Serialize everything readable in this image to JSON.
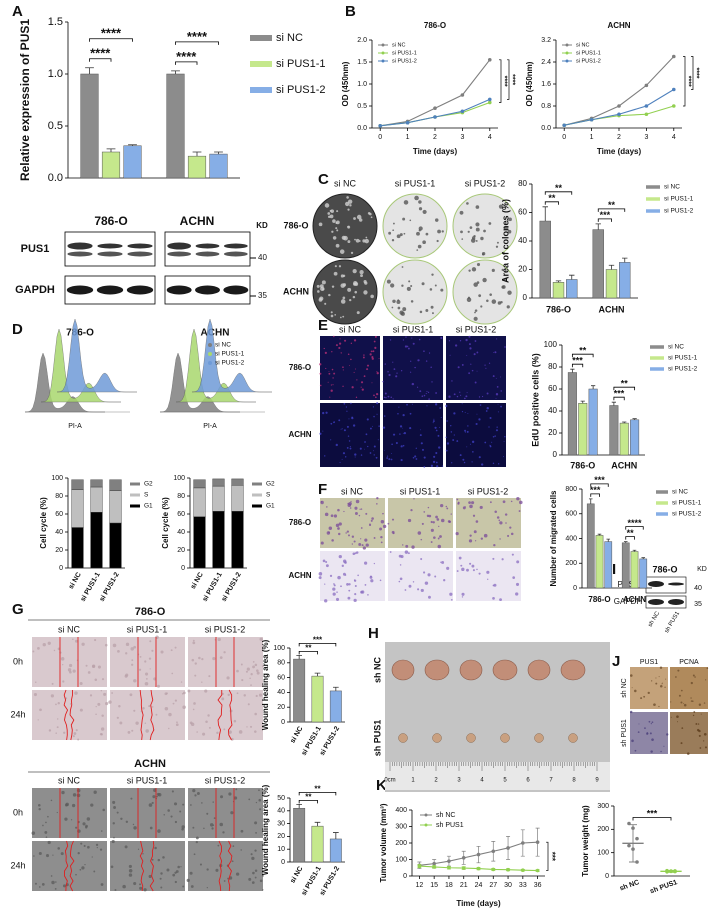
{
  "figure": {
    "letters": [
      "A",
      "B",
      "C",
      "D",
      "E",
      "F",
      "G",
      "H",
      "I",
      "J",
      "K",
      "L"
    ],
    "blot_a": {
      "kd": "KD",
      "rows": [
        "PUS1",
        "GAPDH"
      ],
      "markers": [
        40,
        35
      ]
    },
    "colony_c": {
      "columns": [
        "si NC",
        "si PUS1-1",
        "si PUS1-2"
      ],
      "rows": [
        "786-O",
        "ACHN"
      ]
    },
    "flow_d": {
      "titles": [
        "786-O",
        "ACHN"
      ],
      "xlabel": "PI-A",
      "legend": [
        "si NC",
        "si PUS1-1",
        "si PUS1-2"
      ],
      "colors": [
        "#7f7f7f",
        "#a9d86e",
        "#6f9bd8"
      ]
    },
    "edu_e": {
      "columns": [
        "si NC",
        "si PUS1-1",
        "si PUS1-2"
      ],
      "rows": [
        "786-O",
        "ACHN"
      ]
    },
    "transwell_f": {
      "columns": [
        "si NC",
        "si PUS1-1",
        "si PUS1-2"
      ],
      "rows": [
        "786-O",
        "ACHN"
      ]
    },
    "wound_g": {
      "titles": [
        "786-O",
        "ACHN"
      ],
      "columns": [
        "si NC",
        "si PUS1-1",
        "si PUS1-2"
      ],
      "rows": [
        "0h",
        "24h"
      ]
    },
    "tumor_h": {
      "rows": [
        "sh NC",
        "sh PUS1"
      ],
      "ruler": [
        "0cm",
        "1",
        "2",
        "3",
        "4",
        "5",
        "6",
        "7",
        "8",
        "9"
      ]
    },
    "blot_i": {
      "title": "786-O",
      "kd": "KD",
      "rows": [
        "PUS1",
        "GAPDH"
      ],
      "markers": [
        40,
        35
      ],
      "columns": [
        "sh NC",
        "sh PUS1"
      ]
    },
    "ihc_j": {
      "columns": [
        "PUS1",
        "PCNA"
      ],
      "rows": [
        "sh NC",
        "sh PUS1"
      ]
    }
  },
  "chart_data": [
    {
      "type": "bar",
      "ylabel": "Relative expression of PUS1",
      "categories": [
        "786-O",
        "ACHN"
      ],
      "series": [
        {
          "name": "si NC",
          "color": "#8c8c8c",
          "values": [
            1.0,
            1.0
          ],
          "errors": [
            0.06,
            0.03
          ]
        },
        {
          "name": "si PUS1-1",
          "color": "#c5e88c",
          "values": [
            0.25,
            0.21
          ],
          "errors": [
            0.03,
            0.04
          ]
        },
        {
          "name": "si PUS1-2",
          "color": "#86aee6",
          "values": [
            0.31,
            0.23
          ],
          "errors": [
            0.01,
            0.02
          ]
        }
      ],
      "ylim": [
        0,
        1.5
      ],
      "yticks": [
        {
          "value": 0,
          "label": "0.0"
        },
        0.5,
        {
          "value": 1,
          "label": "1.0"
        },
        1.5
      ],
      "annotations": [
        "****",
        "****",
        "****",
        "****"
      ]
    },
    {
      "type": "line",
      "title": "786-O",
      "xlabel": "Time (days)",
      "ylabel": "OD (450nm)",
      "x": [
        0,
        1,
        2,
        3,
        4
      ],
      "xlim": [
        -0.3,
        4.3
      ],
      "xticks": [
        0,
        1,
        2,
        3,
        4
      ],
      "ylim": [
        0,
        2
      ],
      "yticks": [
        {
          "value": 0,
          "label": "0.0"
        },
        0.5,
        {
          "value": 1,
          "label": "1.0"
        },
        1.5,
        {
          "value": 2,
          "label": "2.0"
        }
      ],
      "series": [
        {
          "name": "si NC",
          "color": "#7f7f7f",
          "values": [
            0.05,
            0.15,
            0.45,
            0.75,
            1.55
          ]
        },
        {
          "name": "si PUS1-1",
          "color": "#92d050",
          "values": [
            0.05,
            0.12,
            0.25,
            0.35,
            0.58
          ]
        },
        {
          "name": "si PUS1-2",
          "color": "#4f81bd",
          "values": [
            0.05,
            0.12,
            0.25,
            0.38,
            0.65
          ]
        }
      ],
      "annotations": [
        "****",
        "****"
      ]
    },
    {
      "type": "line",
      "title": "ACHN",
      "xlabel": "Time (days)",
      "ylabel": "OD (450nm)",
      "x": [
        0,
        1,
        2,
        3,
        4
      ],
      "xlim": [
        -0.3,
        4.3
      ],
      "xticks": [
        0,
        1,
        2,
        3,
        4
      ],
      "ylim": [
        0,
        3.2
      ],
      "yticks": [
        {
          "value": 0,
          "label": "0.0"
        },
        0.8,
        1.6,
        2.4,
        3.2
      ],
      "series": [
        {
          "name": "si NC",
          "color": "#7f7f7f",
          "values": [
            0.1,
            0.35,
            0.8,
            1.55,
            2.6
          ]
        },
        {
          "name": "si PUS1-1",
          "color": "#92d050",
          "values": [
            0.1,
            0.3,
            0.45,
            0.5,
            0.8
          ]
        },
        {
          "name": "si PUS1-2",
          "color": "#4f81bd",
          "values": [
            0.1,
            0.3,
            0.5,
            0.8,
            1.4
          ]
        }
      ],
      "annotations": [
        "****",
        "****"
      ]
    },
    {
      "type": "bar",
      "ylabel": "Area of colones (%)",
      "categories": [
        "786-O",
        "ACHN"
      ],
      "series": [
        {
          "name": "si NC",
          "color": "#8c8c8c",
          "values": [
            54,
            48
          ],
          "errors": [
            10,
            4
          ]
        },
        {
          "name": "si PUS1-1",
          "color": "#c5e88c",
          "values": [
            11,
            20
          ],
          "errors": [
            1,
            3
          ]
        },
        {
          "name": "si PUS1-2",
          "color": "#86aee6",
          "values": [
            13,
            25
          ],
          "errors": [
            3,
            3
          ]
        }
      ],
      "ylim": [
        0,
        80
      ],
      "yticks": [
        0,
        20,
        40,
        60,
        80
      ],
      "annotations": [
        "**",
        "**",
        "***",
        "**"
      ]
    },
    {
      "type": "stacked-bar",
      "ylabel": "Cell cycle (%)",
      "categories": [
        "si NC",
        "si PUS1-1",
        "si PUS1-2"
      ],
      "series": [
        {
          "name": "G1",
          "color": "#000000",
          "values": [
            45,
            62,
            50
          ]
        },
        {
          "name": "S",
          "color": "#bfbfbf",
          "values": [
            42,
            28,
            36
          ]
        },
        {
          "name": "G2",
          "color": "#808080",
          "values": [
            11,
            8,
            12
          ]
        }
      ],
      "ylim": [
        0,
        100
      ],
      "yticks": [
        0,
        20,
        40,
        60,
        80,
        100
      ]
    },
    {
      "type": "stacked-bar",
      "ylabel": "Cell cycle (%)",
      "categories": [
        "si NC",
        "si PUS1-1",
        "si PUS1-2"
      ],
      "series": [
        {
          "name": "G1",
          "color": "#000000",
          "values": [
            57,
            63,
            63
          ]
        },
        {
          "name": "S",
          "color": "#bfbfbf",
          "values": [
            32,
            28,
            29
          ]
        },
        {
          "name": "G2",
          "color": "#808080",
          "values": [
            9,
            8,
            7
          ]
        }
      ],
      "ylim": [
        0,
        100
      ],
      "yticks": [
        0,
        20,
        40,
        60,
        80,
        100
      ]
    },
    {
      "type": "bar",
      "ylabel": "EdU positive cells (%)",
      "categories": [
        "786-O",
        "ACHN"
      ],
      "series": [
        {
          "name": "si NC",
          "color": "#8c8c8c",
          "values": [
            75,
            45
          ],
          "errors": [
            3,
            3
          ]
        },
        {
          "name": "si PUS1-1",
          "color": "#c5e88c",
          "values": [
            47,
            29
          ],
          "errors": [
            2,
            1
          ]
        },
        {
          "name": "si PUS1-2",
          "color": "#86aee6",
          "values": [
            60,
            32
          ],
          "errors": [
            3,
            1
          ]
        }
      ],
      "ylim": [
        0,
        100
      ],
      "yticks": [
        0,
        20,
        40,
        60,
        80,
        100
      ],
      "annotations": [
        "***",
        "**",
        "***",
        "**"
      ]
    },
    {
      "type": "bar",
      "ylabel": "Number of migrated cells",
      "categories": [
        "786-O",
        "ACHN"
      ],
      "series": [
        {
          "name": "si NC",
          "color": "#8c8c8c",
          "values": [
            680,
            365
          ],
          "errors": [
            40,
            10
          ]
        },
        {
          "name": "si PUS1-1",
          "color": "#c5e88c",
          "values": [
            425,
            295
          ],
          "errors": [
            10,
            10
          ]
        },
        {
          "name": "si PUS1-2",
          "color": "#86aee6",
          "values": [
            375,
            235
          ],
          "errors": [
            20,
            10
          ]
        }
      ],
      "ylim": [
        0,
        800
      ],
      "yticks": [
        0,
        200,
        400,
        600,
        800
      ],
      "annotations": [
        "***",
        "***",
        "**",
        "****"
      ]
    },
    {
      "type": "bar",
      "ylabel": "Wound healing area (%)",
      "categories": [
        "si NC",
        "si PUS1-1",
        "si PUS1-2"
      ],
      "values": [
        85,
        62,
        42
      ],
      "errors": [
        5,
        4,
        5
      ],
      "colors": [
        "#8c8c8c",
        "#c5e88c",
        "#86aee6"
      ],
      "ylim": [
        0,
        100
      ],
      "yticks": [
        0,
        20,
        40,
        60,
        80,
        100
      ],
      "annotations": [
        "**",
        "***"
      ]
    },
    {
      "type": "bar",
      "ylabel": "Wound healing area (%)",
      "categories": [
        "si NC",
        "si PUS1-1",
        "si PUS1-2"
      ],
      "values": [
        42,
        28,
        18
      ],
      "errors": [
        3,
        3,
        5
      ],
      "colors": [
        "#8c8c8c",
        "#c5e88c",
        "#86aee6"
      ],
      "ylim": [
        0,
        50
      ],
      "yticks": [
        0,
        10,
        20,
        30,
        40,
        50
      ],
      "annotations": [
        "**",
        "**"
      ]
    },
    {
      "type": "line",
      "xlabel": "Time (days)",
      "ylabel": "Tumor volume (mm³)",
      "x": [
        12,
        15,
        18,
        21,
        24,
        27,
        30,
        33,
        36
      ],
      "xlim": [
        10.5,
        37.5
      ],
      "xticks": [
        12,
        15,
        18,
        21,
        24,
        27,
        30,
        33,
        36
      ],
      "ylim": [
        0,
        400
      ],
      "yticks": [
        0,
        100,
        200,
        300,
        400
      ],
      "series": [
        {
          "name": "sh NC",
          "color": "#7f7f7f",
          "values": [
            65,
            75,
            90,
            110,
            130,
            150,
            170,
            200,
            205
          ],
          "errors": [
            20,
            25,
            30,
            40,
            50,
            60,
            70,
            80,
            85
          ]
        },
        {
          "name": "sh PUS1",
          "color": "#92d050",
          "values": [
            60,
            55,
            50,
            48,
            45,
            40,
            38,
            35,
            33
          ],
          "errors": [
            10,
            8,
            8,
            8,
            7,
            6,
            6,
            5,
            5
          ]
        }
      ],
      "annotations": [
        "***"
      ]
    },
    {
      "type": "dot",
      "ylabel": "Tumor weight (mg)",
      "categories": [
        "sh NC",
        "sh PUS1"
      ],
      "values": [
        140,
        20
      ],
      "errors": [
        80,
        4
      ],
      "colors": [
        "#7f7f7f",
        "#92d050"
      ],
      "points": [
        [
          225,
          205,
          160,
          130,
          115,
          60
        ],
        [
          23,
          21,
          19,
          18,
          20,
          22
        ]
      ],
      "ylim": [
        0,
        300
      ],
      "yticks": [
        0,
        100,
        200,
        300
      ],
      "annotations": [
        "***"
      ]
    }
  ]
}
